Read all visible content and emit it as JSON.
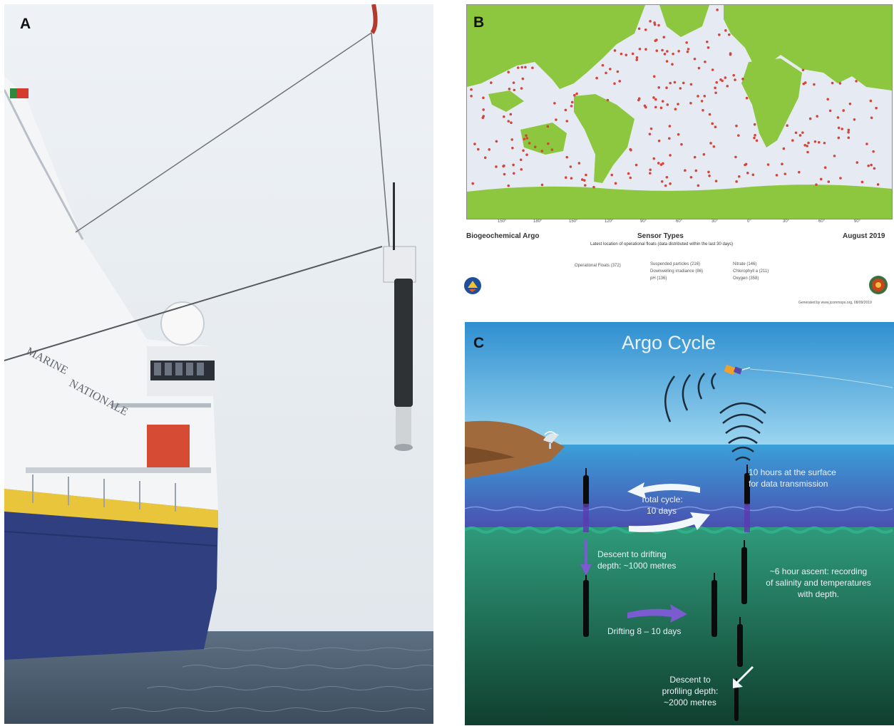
{
  "panels": {
    "a": {
      "label": "A"
    },
    "b": {
      "label": "B",
      "left_title": "Biogeochemical Argo",
      "center_title": "Sensor Types",
      "subtitle": "Latest location of operational floats (data distributed within the last 30 days)",
      "date": "August 2019",
      "legend": [
        "Operational Floats (372)",
        "Suspended particles (216)",
        "Downwelling irradiance (86)",
        "pH (136)",
        "Nitrate (146)",
        "Chlorophyll a (211)",
        "Oxygen (358)"
      ],
      "credit": "Generated by www.jcommops.org, 08/09/2019",
      "colors": {
        "land": "#8dc63f",
        "ocean": "#e6ebf3",
        "float": "#d4453a"
      }
    },
    "c": {
      "label": "C",
      "title": "Argo Cycle",
      "surface_text": [
        "10 hours at the surface",
        "for data transmission"
      ],
      "cycle_text": [
        "Total cycle:",
        "10 days"
      ],
      "descent_text": [
        "Descent to drifting",
        "depth: ~1000 metres"
      ],
      "ascent_text": [
        "~6 hour ascent: recording",
        "of salinity and temperatures",
        "with depth."
      ],
      "drift_text": "Drifting 8 – 10 days",
      "profile_text": [
        "Descent to",
        "profiling depth:",
        "~2000 metres"
      ],
      "colors": {
        "sky": "#5ab3e3",
        "surface_water": "#4f7fc8",
        "deep_water": "#1f6e50",
        "land": "#a06a3c"
      }
    }
  }
}
